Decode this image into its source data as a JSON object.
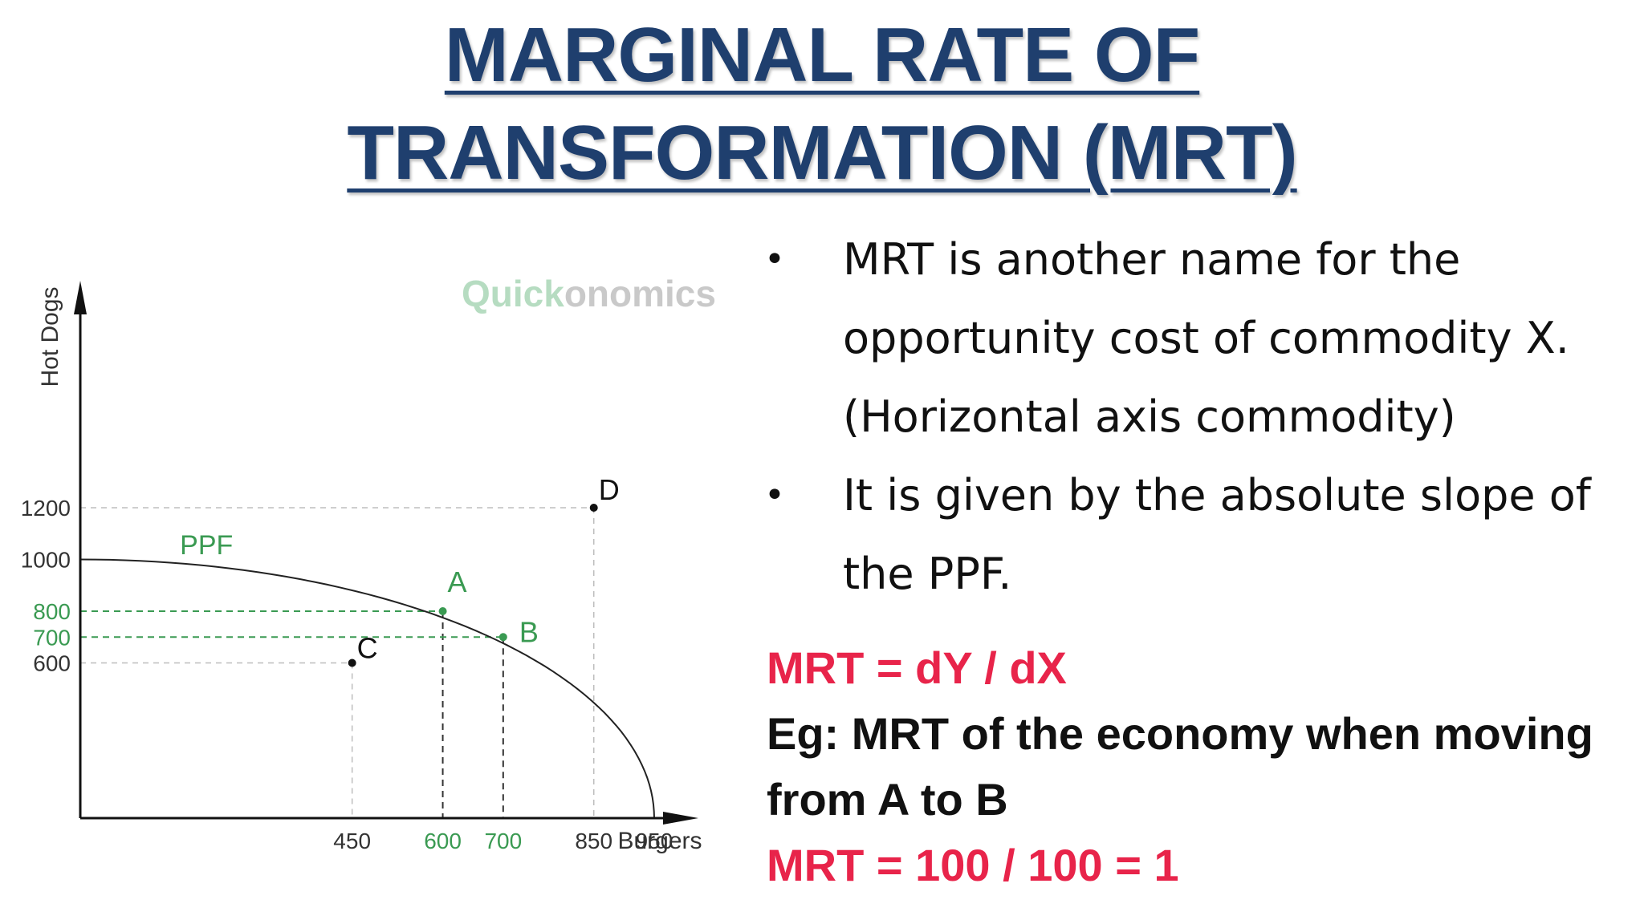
{
  "title": {
    "line1": "MARGINAL RATE OF",
    "line2": "TRANSFORMATION (MRT)"
  },
  "bullets": [
    {
      "line1": "MRT is another name for the",
      "line2": "opportunity cost of commodity X.",
      "line3": "(Horizontal axis commodity)"
    },
    {
      "line1": "It is given by the absolute slope of",
      "line2": "the PPF."
    }
  ],
  "formulas": {
    "mrt_def": "MRT = dY / dX",
    "example_line1": "Eg: MRT of the economy when moving",
    "example_line2": "from A to B",
    "result": "MRT = 100 / 100 = 1"
  },
  "colors": {
    "title": "#1f3f6e",
    "highlight": "#e8244a",
    "green": "#3a9a52",
    "axis": "#111111"
  },
  "chart_data": {
    "type": "line",
    "watermark": {
      "part1": "Quick",
      "part2": "onomics"
    },
    "xlabel": "Burgers",
    "ylabel": "Hot Dogs",
    "xlim": [
      0,
      1000
    ],
    "ylim": [
      0,
      1400
    ],
    "curve_label": "PPF",
    "curve": {
      "x_intercept": 950,
      "y_intercept": 1000
    },
    "x_ticks": [
      {
        "value": 450,
        "label": "450",
        "highlight": false
      },
      {
        "value": 600,
        "label": "600",
        "highlight": true
      },
      {
        "value": 700,
        "label": "700",
        "highlight": true
      },
      {
        "value": 850,
        "label": "850",
        "highlight": false
      },
      {
        "value": 950,
        "label": "950",
        "highlight": false
      }
    ],
    "y_ticks": [
      {
        "value": 600,
        "label": "600",
        "highlight": false
      },
      {
        "value": 700,
        "label": "700",
        "highlight": true
      },
      {
        "value": 800,
        "label": "800",
        "highlight": true
      },
      {
        "value": 1000,
        "label": "1000",
        "highlight": false
      },
      {
        "value": 1200,
        "label": "1200",
        "highlight": false
      }
    ],
    "points": [
      {
        "label": "A",
        "x": 600,
        "y": 800,
        "highlight": true
      },
      {
        "label": "B",
        "x": 700,
        "y": 700,
        "highlight": true
      },
      {
        "label": "C",
        "x": 450,
        "y": 600,
        "highlight": false
      },
      {
        "label": "D",
        "x": 850,
        "y": 1200,
        "highlight": false
      }
    ]
  }
}
